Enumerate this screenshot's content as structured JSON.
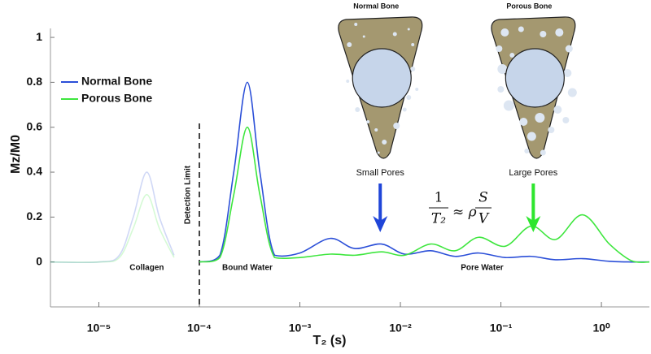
{
  "chart_data": {
    "type": "line",
    "xlabel": "T₂ (s)",
    "ylabel": "Mz/M0",
    "xscale": "log",
    "xlim": [
      3.3e-06,
      3
    ],
    "ylim": [
      -0.2,
      1.04
    ],
    "xticks": [
      {
        "value": 1e-05,
        "label": "10⁻⁵"
      },
      {
        "value": 0.0001,
        "label": "10⁻⁴"
      },
      {
        "value": 0.001,
        "label": "10⁻³"
      },
      {
        "value": 0.01,
        "label": "10⁻²"
      },
      {
        "value": 0.1,
        "label": "10⁻¹"
      },
      {
        "value": 1,
        "label": "10⁰"
      }
    ],
    "yticks": [
      0,
      0.2,
      0.4,
      0.6,
      0.8,
      1
    ],
    "legend": "upper left",
    "x": [
      3.3e-06,
      1e-05,
      1.6e-05,
      2.2e-05,
      3e-05,
      4e-05,
      5.6e-05,
      0.0001,
      0.00016,
      0.00022,
      0.0003,
      0.0004,
      0.00056,
      0.001,
      0.002,
      0.0035,
      0.0065,
      0.011,
      0.02,
      0.035,
      0.06,
      0.11,
      0.2,
      0.35,
      0.65,
      1.2,
      2,
      3
    ],
    "series": [
      {
        "name": "Normal Bone",
        "color": "#2b4fd8",
        "values": [
          0,
          0,
          0.03,
          0.2,
          0.4,
          0.2,
          0.03,
          0,
          0.03,
          0.4,
          0.8,
          0.4,
          0.03,
          0.04,
          0.105,
          0.06,
          0.08,
          0.035,
          0.05,
          0.025,
          0.04,
          0.02,
          0.025,
          0.01,
          0.015,
          0.003,
          0,
          0
        ]
      },
      {
        "name": "Porous Bone",
        "color": "#3ee63e",
        "values": [
          0,
          0,
          0.02,
          0.15,
          0.3,
          0.15,
          0.02,
          0,
          0.02,
          0.3,
          0.6,
          0.3,
          0.02,
          0.02,
          0.035,
          0.03,
          0.045,
          0.03,
          0.08,
          0.05,
          0.11,
          0.07,
          0.16,
          0.1,
          0.21,
          0.08,
          0.005,
          0
        ]
      }
    ],
    "detection_limit": {
      "x": 0.0001,
      "label": "Detection Limit"
    },
    "region_labels": [
      {
        "x": 3e-05,
        "label": "Collagen"
      },
      {
        "x": 0.0003,
        "label": "Bound Water"
      },
      {
        "x": 0.065,
        "label": "Pore Water"
      }
    ],
    "formula": [
      "1",
      "T₂",
      "≈ ρ",
      "S",
      "V"
    ],
    "insets": [
      {
        "title": "Normal Bone",
        "caption": "Small Pores",
        "arrow_x": 0.0063,
        "arrow_color": "#1f45d8"
      },
      {
        "title": "Porous Bone",
        "caption": "Large Pores",
        "arrow_x": 0.21,
        "arrow_color": "#2ee62e"
      }
    ]
  }
}
